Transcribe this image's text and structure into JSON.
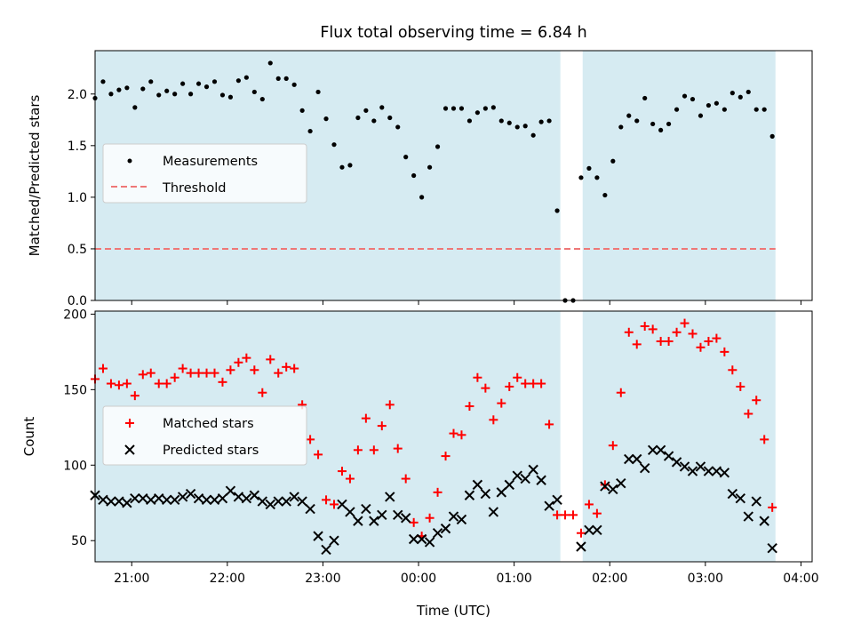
{
  "chart_data": [
    {
      "type": "scatter",
      "title": "Flux total observing time = 6.84 h",
      "xlabel": "",
      "ylabel": "Matched/Predicted stars",
      "xlim": [
        "20:37",
        "04:07"
      ],
      "ylim": [
        0,
        2.42
      ],
      "yticks": [
        "0.0",
        "0.5",
        "1.0",
        "1.5",
        "2.0"
      ],
      "grid": false,
      "legend_position": "center-left",
      "shaded_intervals": [
        [
          "20:37",
          "01:29"
        ],
        [
          "01:43",
          "03:44"
        ]
      ],
      "threshold": {
        "name": "Threshold",
        "value": 0.5,
        "x_range": [
          "20:37",
          "03:44"
        ],
        "color": "#ee7777"
      },
      "series": [
        {
          "name": "Measurements",
          "color": "#000000",
          "points": [
            [
              "20:37",
              1.96
            ],
            [
              "20:42",
              2.12
            ],
            [
              "20:47",
              2.0
            ],
            [
              "20:52",
              2.04
            ],
            [
              "20:57",
              2.06
            ],
            [
              "21:02",
              1.87
            ],
            [
              "21:07",
              2.05
            ],
            [
              "21:12",
              2.12
            ],
            [
              "21:17",
              1.99
            ],
            [
              "21:22",
              2.03
            ],
            [
              "21:27",
              2.0
            ],
            [
              "21:32",
              2.1
            ],
            [
              "21:37",
              2.0
            ],
            [
              "21:42",
              2.1
            ],
            [
              "21:47",
              2.07
            ],
            [
              "21:52",
              2.12
            ],
            [
              "21:57",
              1.99
            ],
            [
              "22:02",
              1.97
            ],
            [
              "22:07",
              2.13
            ],
            [
              "22:12",
              2.16
            ],
            [
              "22:17",
              2.02
            ],
            [
              "22:22",
              1.95
            ],
            [
              "22:27",
              2.3
            ],
            [
              "22:32",
              2.15
            ],
            [
              "22:37",
              2.15
            ],
            [
              "22:42",
              2.09
            ],
            [
              "22:47",
              1.84
            ],
            [
              "22:52",
              1.64
            ],
            [
              "22:57",
              2.02
            ],
            [
              "23:02",
              1.76
            ],
            [
              "23:07",
              1.51
            ],
            [
              "23:12",
              1.29
            ],
            [
              "23:17",
              1.31
            ],
            [
              "23:22",
              1.77
            ],
            [
              "23:27",
              1.84
            ],
            [
              "23:32",
              1.74
            ],
            [
              "23:37",
              1.87
            ],
            [
              "23:42",
              1.77
            ],
            [
              "23:47",
              1.68
            ],
            [
              "23:52",
              1.39
            ],
            [
              "23:57",
              1.21
            ],
            [
              "00:02",
              1.0
            ],
            [
              "00:07",
              1.29
            ],
            [
              "00:12",
              1.49
            ],
            [
              "00:17",
              1.86
            ],
            [
              "00:22",
              1.86
            ],
            [
              "00:27",
              1.86
            ],
            [
              "00:32",
              1.74
            ],
            [
              "00:37",
              1.82
            ],
            [
              "00:42",
              1.86
            ],
            [
              "00:47",
              1.87
            ],
            [
              "00:52",
              1.74
            ],
            [
              "00:57",
              1.72
            ],
            [
              "01:02",
              1.68
            ],
            [
              "01:07",
              1.69
            ],
            [
              "01:12",
              1.6
            ],
            [
              "01:17",
              1.73
            ],
            [
              "01:22",
              1.74
            ],
            [
              "01:27",
              0.87
            ],
            [
              "01:32",
              0.0
            ],
            [
              "01:37",
              0.0
            ],
            [
              "01:42",
              1.19
            ],
            [
              "01:47",
              1.28
            ],
            [
              "01:52",
              1.19
            ],
            [
              "01:57",
              1.02
            ],
            [
              "02:02",
              1.35
            ],
            [
              "02:07",
              1.68
            ],
            [
              "02:12",
              1.79
            ],
            [
              "02:17",
              1.74
            ],
            [
              "02:22",
              1.96
            ],
            [
              "02:27",
              1.71
            ],
            [
              "02:32",
              1.65
            ],
            [
              "02:37",
              1.71
            ],
            [
              "02:42",
              1.85
            ],
            [
              "02:47",
              1.98
            ],
            [
              "02:52",
              1.95
            ],
            [
              "02:57",
              1.79
            ],
            [
              "03:02",
              1.89
            ],
            [
              "03:07",
              1.91
            ],
            [
              "03:12",
              1.85
            ],
            [
              "03:17",
              2.01
            ],
            [
              "03:22",
              1.97
            ],
            [
              "03:27",
              2.02
            ],
            [
              "03:32",
              1.85
            ],
            [
              "03:37",
              1.85
            ],
            [
              "03:42",
              1.59
            ]
          ]
        }
      ]
    },
    {
      "type": "scatter",
      "title": "",
      "xlabel": "Time (UTC)",
      "ylabel": "Count",
      "xlim": [
        "20:37",
        "04:07"
      ],
      "ylim": [
        36,
        202
      ],
      "yticks": [
        "50",
        "100",
        "150",
        "200"
      ],
      "xticks": [
        "21:00",
        "22:00",
        "23:00",
        "00:00",
        "01:00",
        "02:00",
        "03:00",
        "04:00"
      ],
      "grid": false,
      "legend_position": "center-left",
      "shaded_intervals": [
        [
          "20:37",
          "01:29"
        ],
        [
          "01:43",
          "03:44"
        ]
      ],
      "series": [
        {
          "name": "Matched stars",
          "marker": "plus",
          "color": "#ff0000",
          "points": [
            [
              "20:37",
              157
            ],
            [
              "20:42",
              164
            ],
            [
              "20:47",
              154
            ],
            [
              "20:52",
              153
            ],
            [
              "20:57",
              154
            ],
            [
              "21:02",
              146
            ],
            [
              "21:07",
              160
            ],
            [
              "21:12",
              161
            ],
            [
              "21:17",
              154
            ],
            [
              "21:22",
              154
            ],
            [
              "21:27",
              158
            ],
            [
              "21:32",
              164
            ],
            [
              "21:37",
              161
            ],
            [
              "21:42",
              161
            ],
            [
              "21:47",
              161
            ],
            [
              "21:52",
              161
            ],
            [
              "21:57",
              155
            ],
            [
              "22:02",
              163
            ],
            [
              "22:07",
              168
            ],
            [
              "22:12",
              171
            ],
            [
              "22:17",
              163
            ],
            [
              "22:22",
              148
            ],
            [
              "22:27",
              170
            ],
            [
              "22:32",
              161
            ],
            [
              "22:37",
              165
            ],
            [
              "22:42",
              164
            ],
            [
              "22:47",
              140
            ],
            [
              "22:52",
              117
            ],
            [
              "22:57",
              107
            ],
            [
              "23:02",
              77
            ],
            [
              "23:07",
              74
            ],
            [
              "23:12",
              96
            ],
            [
              "23:17",
              91
            ],
            [
              "23:22",
              110
            ],
            [
              "23:27",
              131
            ],
            [
              "23:32",
              110
            ],
            [
              "23:37",
              126
            ],
            [
              "23:42",
              140
            ],
            [
              "23:47",
              111
            ],
            [
              "23:52",
              91
            ],
            [
              "23:57",
              62
            ],
            [
              "00:02",
              53
            ],
            [
              "00:07",
              65
            ],
            [
              "00:12",
              82
            ],
            [
              "00:17",
              106
            ],
            [
              "00:22",
              121
            ],
            [
              "00:27",
              120
            ],
            [
              "00:32",
              139
            ],
            [
              "00:37",
              158
            ],
            [
              "00:42",
              151
            ],
            [
              "00:47",
              130
            ],
            [
              "00:52",
              141
            ],
            [
              "00:57",
              152
            ],
            [
              "01:02",
              158
            ],
            [
              "01:07",
              154
            ],
            [
              "01:12",
              154
            ],
            [
              "01:17",
              154
            ],
            [
              "01:22",
              127
            ],
            [
              "01:27",
              67
            ],
            [
              "01:32",
              67
            ],
            [
              "01:37",
              67
            ],
            [
              "01:42",
              55
            ],
            [
              "01:47",
              74
            ],
            [
              "01:52",
              68
            ],
            [
              "01:57",
              87
            ],
            [
              "02:02",
              113
            ],
            [
              "02:07",
              148
            ],
            [
              "02:12",
              188
            ],
            [
              "02:17",
              180
            ],
            [
              "02:22",
              192
            ],
            [
              "02:27",
              190
            ],
            [
              "02:32",
              182
            ],
            [
              "02:37",
              182
            ],
            [
              "02:42",
              188
            ],
            [
              "02:47",
              194
            ],
            [
              "02:52",
              187
            ],
            [
              "02:57",
              178
            ],
            [
              "03:02",
              182
            ],
            [
              "03:07",
              184
            ],
            [
              "03:12",
              175
            ],
            [
              "03:17",
              163
            ],
            [
              "03:22",
              152
            ],
            [
              "03:27",
              134
            ],
            [
              "03:32",
              143
            ],
            [
              "03:37",
              117
            ],
            [
              "03:42",
              72
            ]
          ]
        },
        {
          "name": "Predicted stars",
          "marker": "x",
          "color": "#000000",
          "points": [
            [
              "20:37",
              80
            ],
            [
              "20:42",
              77
            ],
            [
              "20:47",
              76
            ],
            [
              "20:52",
              76
            ],
            [
              "20:57",
              75
            ],
            [
              "21:02",
              78
            ],
            [
              "21:07",
              78
            ],
            [
              "21:12",
              77
            ],
            [
              "21:17",
              78
            ],
            [
              "21:22",
              77
            ],
            [
              "21:27",
              77
            ],
            [
              "21:32",
              79
            ],
            [
              "21:37",
              81
            ],
            [
              "21:42",
              78
            ],
            [
              "21:47",
              77
            ],
            [
              "21:52",
              77
            ],
            [
              "21:57",
              78
            ],
            [
              "22:02",
              83
            ],
            [
              "22:07",
              79
            ],
            [
              "22:12",
              78
            ],
            [
              "22:17",
              80
            ],
            [
              "22:22",
              76
            ],
            [
              "22:27",
              74
            ],
            [
              "22:32",
              76
            ],
            [
              "22:37",
              76
            ],
            [
              "22:42",
              79
            ],
            [
              "22:47",
              76
            ],
            [
              "22:52",
              71
            ],
            [
              "22:57",
              53
            ],
            [
              "23:02",
              44
            ],
            [
              "23:07",
              50
            ],
            [
              "23:12",
              74
            ],
            [
              "23:17",
              69
            ],
            [
              "23:22",
              63
            ],
            [
              "23:27",
              71
            ],
            [
              "23:32",
              63
            ],
            [
              "23:37",
              67
            ],
            [
              "23:42",
              79
            ],
            [
              "23:47",
              67
            ],
            [
              "23:52",
              65
            ],
            [
              "23:57",
              51
            ],
            [
              "00:02",
              51
            ],
            [
              "00:07",
              49
            ],
            [
              "00:12",
              55
            ],
            [
              "00:17",
              58
            ],
            [
              "00:22",
              66
            ],
            [
              "00:27",
              64
            ],
            [
              "00:32",
              80
            ],
            [
              "00:37",
              87
            ],
            [
              "00:42",
              81
            ],
            [
              "00:47",
              69
            ],
            [
              "00:52",
              82
            ],
            [
              "00:57",
              87
            ],
            [
              "01:02",
              93
            ],
            [
              "01:07",
              91
            ],
            [
              "01:12",
              97
            ],
            [
              "01:17",
              90
            ],
            [
              "01:22",
              73
            ],
            [
              "01:27",
              77
            ],
            [
              "01:42",
              46
            ],
            [
              "01:47",
              57
            ],
            [
              "01:52",
              57
            ],
            [
              "01:57",
              86
            ],
            [
              "02:02",
              84
            ],
            [
              "02:07",
              88
            ],
            [
              "02:12",
              104
            ],
            [
              "02:17",
              104
            ],
            [
              "02:22",
              98
            ],
            [
              "02:27",
              110
            ],
            [
              "02:32",
              110
            ],
            [
              "02:37",
              106
            ],
            [
              "02:42",
              102
            ],
            [
              "02:47",
              99
            ],
            [
              "02:52",
              96
            ],
            [
              "02:57",
              99
            ],
            [
              "03:02",
              96
            ],
            [
              "03:07",
              96
            ],
            [
              "03:12",
              95
            ],
            [
              "03:17",
              81
            ],
            [
              "03:22",
              78
            ],
            [
              "03:27",
              66
            ],
            [
              "03:32",
              76
            ],
            [
              "03:37",
              63
            ],
            [
              "03:42",
              45
            ]
          ]
        }
      ]
    }
  ]
}
